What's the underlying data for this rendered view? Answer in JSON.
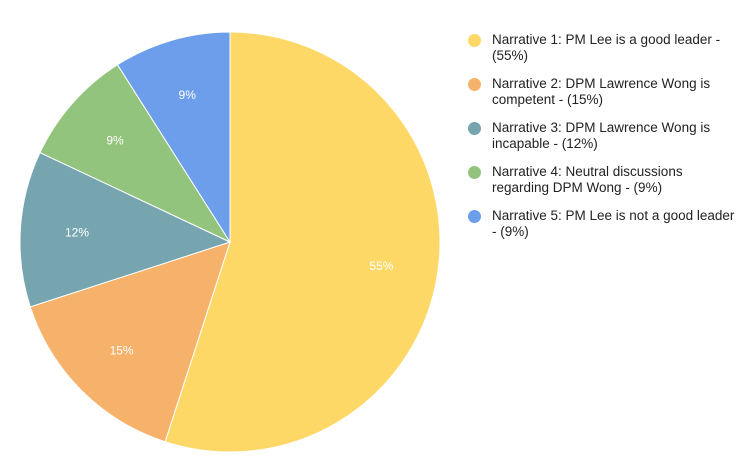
{
  "chart_data": {
    "type": "pie",
    "title": "",
    "categories": [
      "Narrative 1: PM Lee is a good leader - (55%)",
      "Narrative 2: DPM Lawrence Wong is competent - (15%)",
      "Narrative 3: DPM Lawrence Wong is incapable - (12%)",
      "Narrative 4: Neutral discussions regarding DPM Wong - (9%)",
      "Narrative 5: PM Lee is not a good leader - (9%)"
    ],
    "values": [
      55,
      15,
      12,
      9,
      9
    ],
    "slice_labels": [
      "55%",
      "15%",
      "12%",
      "9%",
      "9%"
    ],
    "colors": [
      "#FDD866",
      "#F6B26B",
      "#76A5AF",
      "#93C47D",
      "#6D9EEB"
    ],
    "legend_position": "right"
  }
}
